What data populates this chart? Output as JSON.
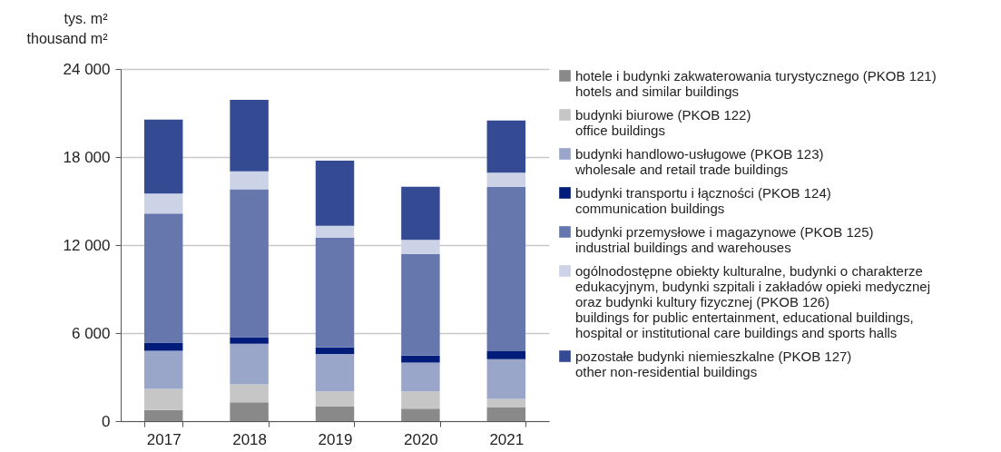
{
  "chart_data": {
    "type": "bar",
    "stacked": true,
    "ylabel": "tys. m²\nthousand m²",
    "categories": [
      "2017",
      "2018",
      "2019",
      "2020",
      "2021"
    ],
    "ylim": [
      0,
      24000
    ],
    "yticks": [
      0,
      {
        "value": 6000,
        "label": "6 000"
      },
      {
        "value": 12000,
        "label": "12 000"
      },
      {
        "value": 18000,
        "label": "18 000"
      },
      {
        "value": 24000,
        "label": "24 000"
      }
    ],
    "grid": "y",
    "legend": "right",
    "series": [
      {
        "name": "hotele i budynki zakwaterowania turystycznego (PKOB 121)\nhotels and similar buildings",
        "color": "#898989",
        "values": [
          760,
          1280,
          990,
          850,
          930
        ]
      },
      {
        "name": "budynki biurowe (PKOB 122)\noffice buildings",
        "color": "#c6c6c6",
        "values": [
          1430,
          1220,
          1030,
          1180,
          580
        ]
      },
      {
        "name": "budynki handlowo-usługowe (PKOB 123)\nwholesale and retail trade buildings",
        "color": "#9aa6c9",
        "values": [
          2600,
          2770,
          2560,
          1960,
          2710
        ]
      },
      {
        "name": "budynki transportu i łączności (PKOB 124)\ncommunication buildings",
        "color": "#001c7a",
        "values": [
          560,
          450,
          450,
          480,
          540
        ]
      },
      {
        "name": "budynki przemysłowe i magazynowe (PKOB 125)\nindustrial buildings and warehouses",
        "color": "#6677ad",
        "values": [
          8800,
          10080,
          7460,
          6920,
          11210
        ]
      },
      {
        "name": "ogólnodostępne obiekty kulturalne, budynki o charakterze\nedukacyjnym, budynki szpitali i zakładów opieki medycznej\noraz budynki kultury fizycznej (PKOB 126)\nbuildings for public entertainment, educational buildings,\nhospital or institutional care buildings and sports halls",
        "color": "#cdd3e6",
        "values": [
          1360,
          1220,
          830,
          970,
          970
        ]
      },
      {
        "name": "pozostałe budynki niemieszkalne (PKOB 127)\nother non-residential buildings",
        "color": "#344a93",
        "values": [
          5040,
          4870,
          4440,
          3610,
          3550
        ]
      }
    ]
  }
}
